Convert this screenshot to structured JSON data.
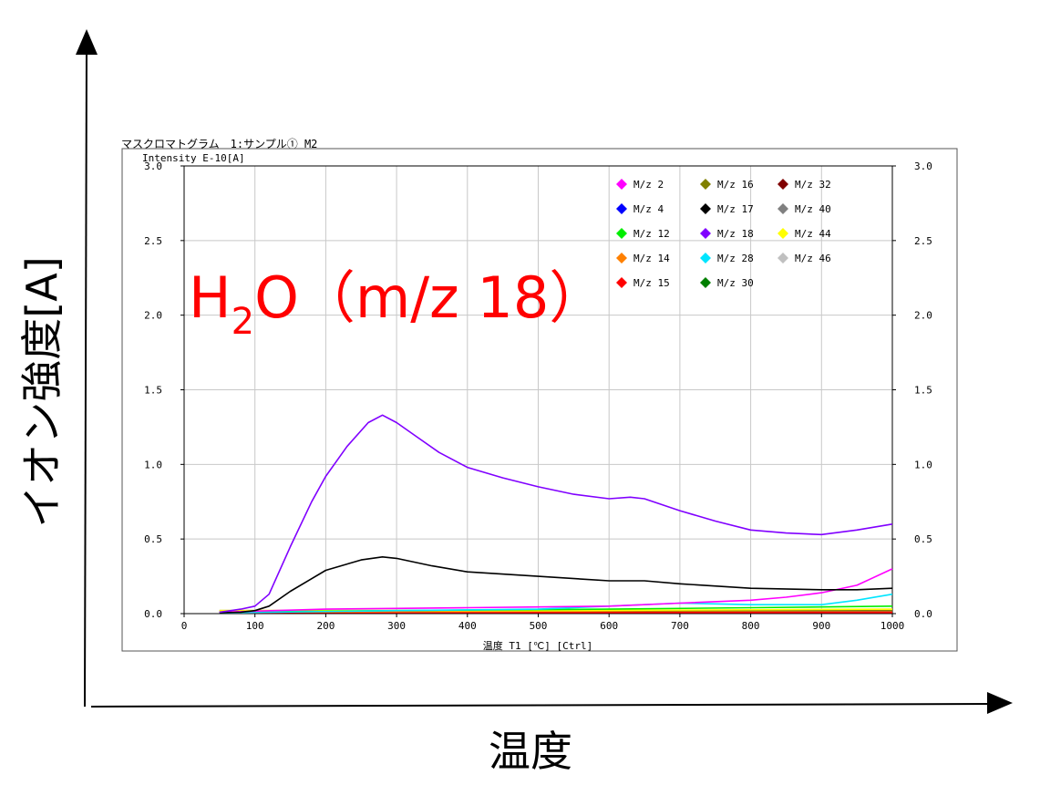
{
  "page": {
    "outer_y_label": "イオン強度[A]",
    "outer_x_label": "温度",
    "overlay_label": "H2O（m/z 18）"
  },
  "chart_data": {
    "type": "line",
    "title": "マスクロマトグラム　1:サンプル①_M2",
    "ylabel": "Intensity E-10[A]",
    "xlabel": "温度 T1 [℃] [Ctrl]",
    "xlim": [
      0,
      1000
    ],
    "ylim": [
      0,
      3.0
    ],
    "x_ticks": [
      "0",
      "100",
      "200",
      "300",
      "400",
      "500",
      "600",
      "700",
      "800",
      "900",
      "1000"
    ],
    "y_ticks": [
      "0.0",
      "0.5",
      "1.0",
      "1.5",
      "2.0",
      "2.5",
      "3.0"
    ],
    "grid": true,
    "legend_position": "top-right",
    "legend": [
      {
        "label": "M/z 2",
        "color": "#ff00ff"
      },
      {
        "label": "M/z 4",
        "color": "#0000ff"
      },
      {
        "label": "M/z 12",
        "color": "#00ee00"
      },
      {
        "label": "M/z 14",
        "color": "#ff8000"
      },
      {
        "label": "M/z 15",
        "color": "#ff0000"
      },
      {
        "label": "M/z 16",
        "color": "#808000"
      },
      {
        "label": "M/z 17",
        "color": "#000000"
      },
      {
        "label": "M/z 18",
        "color": "#8000ff"
      },
      {
        "label": "M/z 28",
        "color": "#00e5ff"
      },
      {
        "label": "M/z 30",
        "color": "#008000"
      },
      {
        "label": "M/z 32",
        "color": "#800000"
      },
      {
        "label": "M/z 40",
        "color": "#808080"
      },
      {
        "label": "M/z 44",
        "color": "#ffff00"
      },
      {
        "label": "M/z 46",
        "color": "#c0c0c0"
      }
    ],
    "series": [
      {
        "name": "M/z 18",
        "color": "#8000ff",
        "x": [
          50,
          80,
          100,
          120,
          150,
          180,
          200,
          230,
          260,
          280,
          300,
          330,
          360,
          400,
          450,
          500,
          550,
          600,
          630,
          650,
          700,
          750,
          800,
          850,
          900,
          950,
          1000
        ],
        "y": [
          0.01,
          0.03,
          0.05,
          0.13,
          0.45,
          0.75,
          0.92,
          1.12,
          1.28,
          1.33,
          1.28,
          1.18,
          1.08,
          0.98,
          0.91,
          0.85,
          0.8,
          0.77,
          0.78,
          0.77,
          0.69,
          0.62,
          0.56,
          0.54,
          0.53,
          0.56,
          0.6
        ]
      },
      {
        "name": "M/z 17",
        "color": "#000000",
        "x": [
          50,
          80,
          100,
          120,
          150,
          200,
          250,
          280,
          300,
          350,
          400,
          500,
          600,
          650,
          700,
          800,
          900,
          950,
          1000
        ],
        "y": [
          0.005,
          0.01,
          0.02,
          0.05,
          0.15,
          0.29,
          0.36,
          0.38,
          0.37,
          0.32,
          0.28,
          0.25,
          0.22,
          0.22,
          0.2,
          0.17,
          0.16,
          0.16,
          0.17
        ]
      },
      {
        "name": "M/z 2",
        "color": "#ff00ff",
        "x": [
          50,
          200,
          400,
          600,
          700,
          800,
          850,
          900,
          950,
          1000
        ],
        "y": [
          0.01,
          0.03,
          0.04,
          0.05,
          0.07,
          0.09,
          0.11,
          0.14,
          0.19,
          0.3
        ]
      },
      {
        "name": "M/z 28",
        "color": "#00e5ff",
        "x": [
          50,
          300,
          500,
          600,
          700,
          800,
          900,
          950,
          1000
        ],
        "y": [
          0.005,
          0.02,
          0.03,
          0.05,
          0.07,
          0.06,
          0.06,
          0.09,
          0.13
        ]
      },
      {
        "name": "M/z 12",
        "color": "#00ee00",
        "x": [
          50,
          300,
          600,
          800,
          1000
        ],
        "y": [
          0.01,
          0.02,
          0.03,
          0.04,
          0.05
        ]
      },
      {
        "name": "M/z 44",
        "color": "#ffff00",
        "x": [
          50,
          500,
          1000
        ],
        "y": [
          0.02,
          0.02,
          0.03
        ]
      },
      {
        "name": "M/z 16",
        "color": "#808000",
        "x": [
          50,
          500,
          1000
        ],
        "y": [
          0.02,
          0.02,
          0.02
        ]
      },
      {
        "name": "M/z 14",
        "color": "#ff8000",
        "x": [
          50,
          500,
          1000
        ],
        "y": [
          0.01,
          0.015,
          0.02
        ]
      },
      {
        "name": "M/z 15",
        "color": "#ff0000",
        "x": [
          50,
          500,
          1000
        ],
        "y": [
          0.01,
          0.01,
          0.01
        ]
      },
      {
        "name": "M/z 32",
        "color": "#800000",
        "x": [
          50,
          500,
          1000
        ],
        "y": [
          0.005,
          0.005,
          0.005
        ]
      }
    ]
  }
}
